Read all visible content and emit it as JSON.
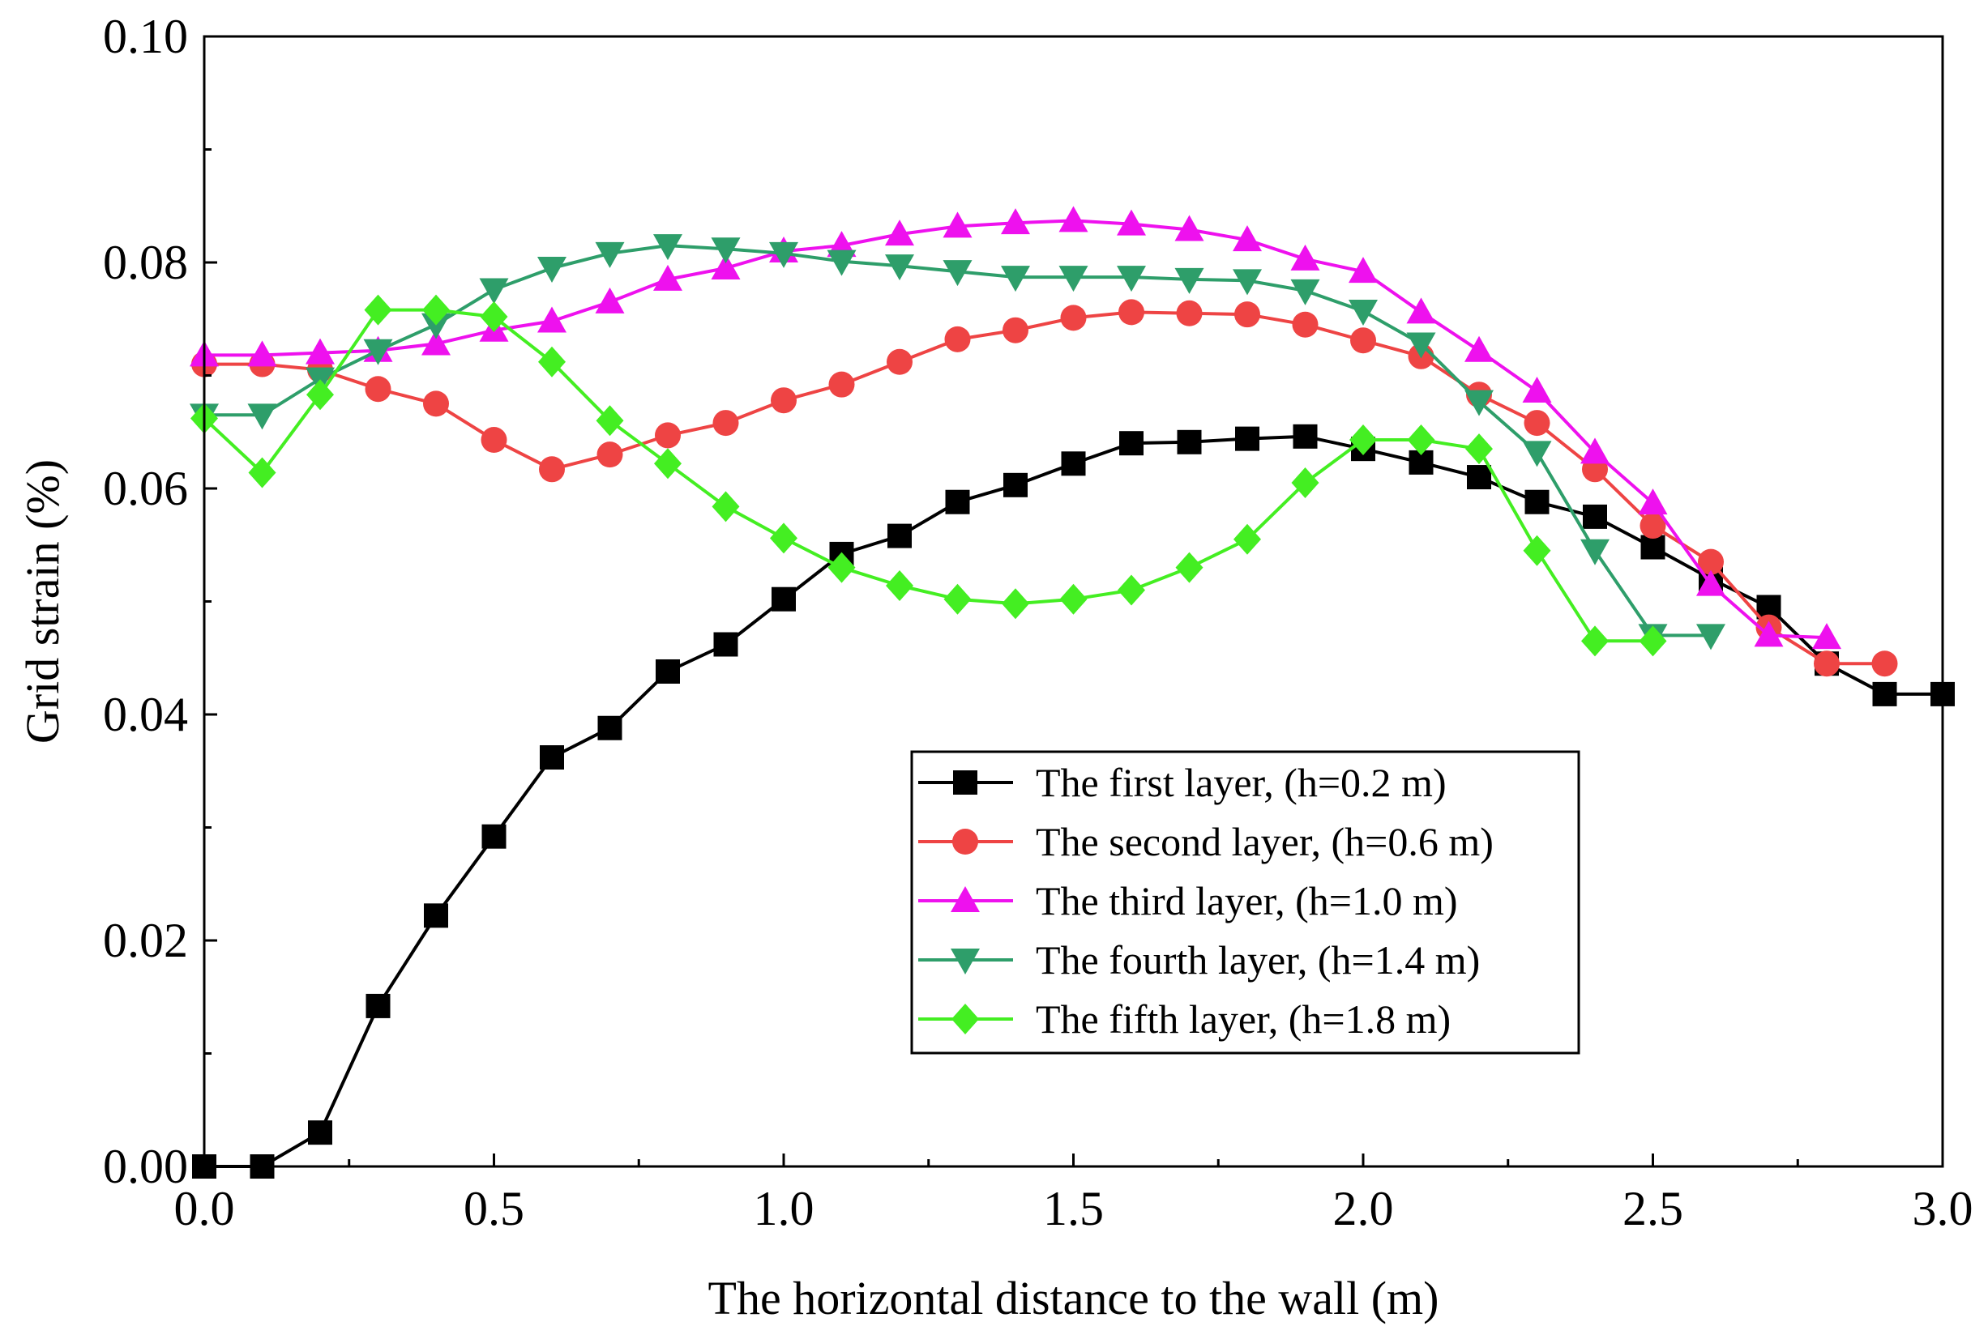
{
  "chart_data": {
    "type": "line",
    "title": "",
    "xlabel": "The horizontal distance to the wall (m)",
    "ylabel": "Grid strain (%)",
    "xlim": [
      0,
      3.0
    ],
    "ylim": [
      0,
      0.1
    ],
    "xticks": [
      "0.0",
      "0.5",
      "1.0",
      "1.5",
      "2.0",
      "2.5",
      "3.0"
    ],
    "yticks": [
      "0.00",
      "0.02",
      "0.04",
      "0.06",
      "0.08",
      "0.10"
    ],
    "grid": false,
    "legend_position": "lower-right",
    "series": [
      {
        "name": "The first layer, (h=0.2 m)",
        "color": "#000000",
        "marker": "square",
        "points": [
          [
            0,
            0
          ],
          [
            0.1,
            0
          ],
          [
            0.2,
            0.003
          ],
          [
            0.3,
            0.0142
          ],
          [
            0.4,
            0.0222
          ],
          [
            0.5,
            0.0292
          ],
          [
            0.6,
            0.0362
          ],
          [
            0.7,
            0.0388
          ],
          [
            0.8,
            0.0438
          ],
          [
            0.9,
            0.0462
          ],
          [
            1.0,
            0.0502
          ],
          [
            1.1,
            0.0542
          ],
          [
            1.2,
            0.0558
          ],
          [
            1.3,
            0.0588
          ],
          [
            1.4,
            0.0603
          ],
          [
            1.5,
            0.0622
          ],
          [
            1.6,
            0.064
          ],
          [
            1.7,
            0.0641
          ],
          [
            1.8,
            0.0644
          ],
          [
            1.9,
            0.0646
          ],
          [
            2.0,
            0.0635
          ],
          [
            2.1,
            0.0623
          ],
          [
            2.2,
            0.061
          ],
          [
            2.3,
            0.0588
          ],
          [
            2.4,
            0.0575
          ],
          [
            2.5,
            0.0548
          ],
          [
            2.6,
            0.052
          ],
          [
            2.7,
            0.0495
          ],
          [
            2.8,
            0.0445
          ],
          [
            2.9,
            0.0418
          ],
          [
            3.0,
            0.0418
          ]
        ]
      },
      {
        "name": "The second layer, (h=0.6 m)",
        "color": "#ee4444",
        "marker": "circle",
        "points": [
          [
            0,
            0.071
          ],
          [
            0.1,
            0.071
          ],
          [
            0.2,
            0.0705
          ],
          [
            0.3,
            0.0688
          ],
          [
            0.4,
            0.0675
          ],
          [
            0.5,
            0.0643
          ],
          [
            0.6,
            0.0617
          ],
          [
            0.7,
            0.063
          ],
          [
            0.8,
            0.0647
          ],
          [
            0.9,
            0.0658
          ],
          [
            1.0,
            0.0678
          ],
          [
            1.1,
            0.0692
          ],
          [
            1.2,
            0.0712
          ],
          [
            1.3,
            0.0732
          ],
          [
            1.4,
            0.074
          ],
          [
            1.5,
            0.0751
          ],
          [
            1.6,
            0.0756
          ],
          [
            1.7,
            0.0755
          ],
          [
            1.8,
            0.0754
          ],
          [
            1.9,
            0.0745
          ],
          [
            2.0,
            0.0731
          ],
          [
            2.1,
            0.0717
          ],
          [
            2.2,
            0.0683
          ],
          [
            2.3,
            0.0658
          ],
          [
            2.4,
            0.0617
          ],
          [
            2.5,
            0.0567
          ],
          [
            2.6,
            0.0535
          ],
          [
            2.7,
            0.0477
          ],
          [
            2.8,
            0.0445
          ],
          [
            2.9,
            0.0445
          ]
        ]
      },
      {
        "name": "The third layer, (h=1.0 m)",
        "color": "#ee11ee",
        "marker": "triangle-up",
        "points": [
          [
            0,
            0.0718
          ],
          [
            0.1,
            0.0718
          ],
          [
            0.2,
            0.072
          ],
          [
            0.3,
            0.0722
          ],
          [
            0.4,
            0.0728
          ],
          [
            0.5,
            0.074
          ],
          [
            0.6,
            0.0748
          ],
          [
            0.7,
            0.0765
          ],
          [
            0.8,
            0.0785
          ],
          [
            0.9,
            0.0795
          ],
          [
            1.0,
            0.081
          ],
          [
            1.1,
            0.0815
          ],
          [
            1.2,
            0.0825
          ],
          [
            1.3,
            0.0832
          ],
          [
            1.4,
            0.0835
          ],
          [
            1.5,
            0.0837
          ],
          [
            1.6,
            0.0834
          ],
          [
            1.7,
            0.0829
          ],
          [
            1.8,
            0.082
          ],
          [
            1.9,
            0.0803
          ],
          [
            2.0,
            0.0792
          ],
          [
            2.1,
            0.0756
          ],
          [
            2.2,
            0.0722
          ],
          [
            2.3,
            0.0686
          ],
          [
            2.4,
            0.0632
          ],
          [
            2.5,
            0.0587
          ],
          [
            2.6,
            0.0515
          ],
          [
            2.7,
            0.047
          ],
          [
            2.8,
            0.0468
          ]
        ]
      },
      {
        "name": "The fourth layer, (h=1.4 m)",
        "color": "#2e9e6a",
        "marker": "triangle-down",
        "points": [
          [
            0,
            0.0665
          ],
          [
            0.1,
            0.0665
          ],
          [
            0.2,
            0.0697
          ],
          [
            0.3,
            0.0722
          ],
          [
            0.4,
            0.0745
          ],
          [
            0.5,
            0.0776
          ],
          [
            0.6,
            0.0795
          ],
          [
            0.7,
            0.0808
          ],
          [
            0.8,
            0.0815
          ],
          [
            0.9,
            0.0812
          ],
          [
            1.0,
            0.0808
          ],
          [
            1.1,
            0.0801
          ],
          [
            1.2,
            0.0797
          ],
          [
            1.3,
            0.0792
          ],
          [
            1.4,
            0.0787
          ],
          [
            1.5,
            0.0787
          ],
          [
            1.6,
            0.0787
          ],
          [
            1.7,
            0.0785
          ],
          [
            1.8,
            0.0784
          ],
          [
            1.9,
            0.0775
          ],
          [
            2.0,
            0.0757
          ],
          [
            2.1,
            0.0728
          ],
          [
            2.2,
            0.0677
          ],
          [
            2.3,
            0.0632
          ],
          [
            2.4,
            0.0545
          ],
          [
            2.5,
            0.047
          ],
          [
            2.6,
            0.047
          ]
        ]
      },
      {
        "name": "The fifth layer, (h=1.8 m)",
        "color": "#44ee22",
        "marker": "diamond",
        "points": [
          [
            0,
            0.0662
          ],
          [
            0.1,
            0.0614
          ],
          [
            0.2,
            0.0683
          ],
          [
            0.3,
            0.0758
          ],
          [
            0.4,
            0.0758
          ],
          [
            0.5,
            0.0752
          ],
          [
            0.6,
            0.0712
          ],
          [
            0.7,
            0.066
          ],
          [
            0.8,
            0.0622
          ],
          [
            0.9,
            0.0584
          ],
          [
            1.0,
            0.0556
          ],
          [
            1.1,
            0.053
          ],
          [
            1.2,
            0.0514
          ],
          [
            1.3,
            0.0502
          ],
          [
            1.4,
            0.0498
          ],
          [
            1.5,
            0.0502
          ],
          [
            1.6,
            0.051
          ],
          [
            1.7,
            0.053
          ],
          [
            1.8,
            0.0555
          ],
          [
            1.9,
            0.0605
          ],
          [
            2.0,
            0.0643
          ],
          [
            2.1,
            0.0643
          ],
          [
            2.2,
            0.0635
          ],
          [
            2.3,
            0.0545
          ],
          [
            2.4,
            0.0465
          ],
          [
            2.5,
            0.0465
          ]
        ]
      }
    ]
  }
}
